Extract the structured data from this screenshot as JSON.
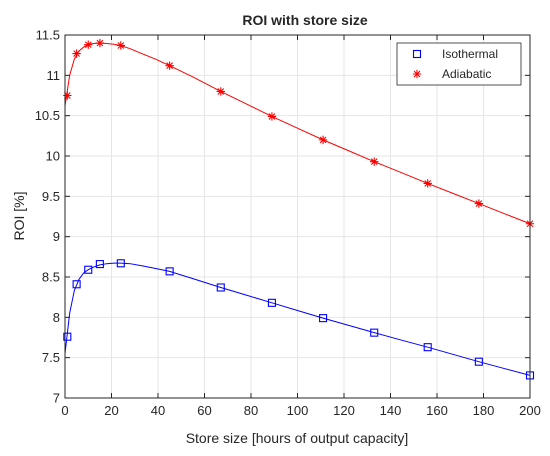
{
  "chart_data": {
    "type": "line",
    "title": "ROI with store size",
    "xlabel": "Store size [hours of output capacity]",
    "ylabel": "ROI [%]",
    "xlim": [
      0,
      200
    ],
    "ylim": [
      7,
      11.5
    ],
    "xticks": [
      0,
      20,
      40,
      60,
      80,
      100,
      120,
      140,
      160,
      180,
      200
    ],
    "yticks": [
      7,
      7.5,
      8,
      8.5,
      9,
      9.5,
      10,
      10.5,
      11,
      11.5
    ],
    "grid": true,
    "legend_position": "top-right",
    "series": [
      {
        "name": "Isothermal",
        "color": "#0000ff",
        "marker": "square",
        "x": [
          1,
          5,
          10,
          15,
          24,
          45,
          67,
          89,
          111,
          133,
          156,
          178,
          200
        ],
        "y": [
          7.76,
          8.41,
          8.59,
          8.66,
          8.67,
          8.57,
          8.37,
          8.18,
          7.99,
          7.81,
          7.63,
          7.45,
          7.28
        ],
        "curve_x": [
          0,
          2,
          4,
          6,
          8,
          10,
          12,
          15,
          18,
          21,
          24,
          28,
          33,
          39,
          45,
          55,
          67,
          78,
          89,
          100,
          111,
          122,
          133,
          145,
          156,
          167,
          178,
          189,
          200
        ],
        "curve_y": [
          7.55,
          8.05,
          8.33,
          8.47,
          8.55,
          8.59,
          8.62,
          8.65,
          8.665,
          8.672,
          8.672,
          8.665,
          8.64,
          8.605,
          8.57,
          8.48,
          8.37,
          8.275,
          8.18,
          8.085,
          7.99,
          7.9,
          7.81,
          7.715,
          7.63,
          7.54,
          7.45,
          7.365,
          7.28
        ]
      },
      {
        "name": "Adiabatic",
        "color": "#ff0000",
        "marker": "asterisk",
        "x": [
          1,
          5,
          10,
          15,
          24,
          45,
          67,
          89,
          111,
          133,
          156,
          178,
          200
        ],
        "y": [
          10.75,
          11.27,
          11.38,
          11.4,
          11.37,
          11.12,
          10.8,
          10.49,
          10.2,
          9.93,
          9.66,
          9.41,
          9.16
        ],
        "curve_x": [
          0,
          2,
          4,
          6,
          8,
          10,
          12,
          15,
          18,
          21,
          24,
          28,
          33,
          39,
          45,
          55,
          67,
          78,
          89,
          100,
          111,
          122,
          133,
          145,
          156,
          167,
          178,
          189,
          200
        ],
        "curve_y": [
          10.62,
          11.0,
          11.2,
          11.3,
          11.35,
          11.38,
          11.395,
          11.4,
          11.395,
          11.385,
          11.37,
          11.33,
          11.27,
          11.2,
          11.12,
          10.98,
          10.8,
          10.645,
          10.49,
          10.345,
          10.2,
          10.065,
          9.93,
          9.79,
          9.66,
          9.535,
          9.41,
          9.285,
          9.16
        ]
      }
    ]
  }
}
